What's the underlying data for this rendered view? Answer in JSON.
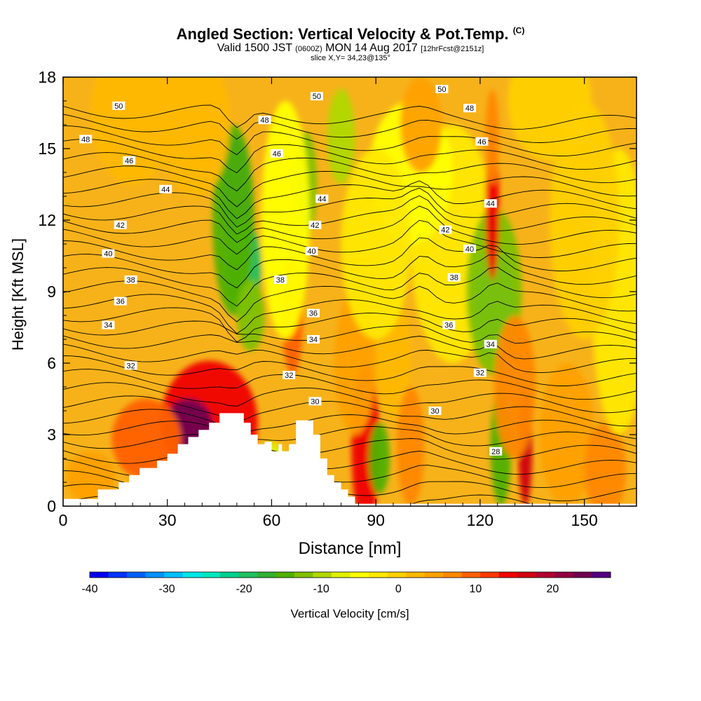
{
  "title": {
    "main": "Angled Section: Vertical Velocity & Pot.Temp.",
    "copyright": "(C)",
    "valid_prefix": "Valid 1500 JST",
    "utc": "(0600Z)",
    "valid_suffix": "MON 14 Aug 2017",
    "forecast": "[12hrFcst@2151z]",
    "slice": "slice X,Y= 34,23@135°"
  },
  "colors": {
    "background_field": "#f7b21a",
    "terrain": "#ffffff",
    "contour": "#000000"
  },
  "chart_data": {
    "type": "heatmap",
    "xlabel": "Distance [nm]",
    "ylabel": "Height [Kft MSL]",
    "xlim": [
      0,
      165
    ],
    "ylim": [
      0,
      18
    ],
    "x_ticks": [
      "0",
      "30",
      "60",
      "90",
      "120",
      "150"
    ],
    "y_ticks": [
      "0",
      "3",
      "6",
      "9",
      "12",
      "15",
      "18"
    ],
    "colorbar": {
      "label": "Vertical Velocity [cm/s]",
      "min": -40,
      "max": 27.5,
      "step": 2.5,
      "tick_labels": [
        "-40",
        "-30",
        "-20",
        "-10",
        "0",
        "10",
        "20"
      ],
      "colors": [
        "#0000f0",
        "#0033ff",
        "#0060ff",
        "#0090ff",
        "#00bfff",
        "#00e8e8",
        "#00e8c0",
        "#00d090",
        "#20c060",
        "#30b030",
        "#50b000",
        "#80c000",
        "#b0d800",
        "#e0f000",
        "#ffff00",
        "#ffe800",
        "#ffd000",
        "#ffb800",
        "#ffa000",
        "#ff8800",
        "#ff6000",
        "#ff3800",
        "#f00000",
        "#d00010",
        "#b00030",
        "#900040",
        "#700050",
        "#500080"
      ]
    },
    "theta_labels": [
      {
        "text": "50",
        "x": 16,
        "y": 16.8
      },
      {
        "text": "48",
        "x": 6.5,
        "y": 15.4
      },
      {
        "text": "46",
        "x": 19,
        "y": 14.5
      },
      {
        "text": "44",
        "x": 29.5,
        "y": 13.3
      },
      {
        "text": "42",
        "x": 16.5,
        "y": 11.8
      },
      {
        "text": "40",
        "x": 13,
        "y": 10.6
      },
      {
        "text": "38",
        "x": 19.5,
        "y": 9.5
      },
      {
        "text": "36",
        "x": 16.5,
        "y": 8.6
      },
      {
        "text": "34",
        "x": 13,
        "y": 7.6
      },
      {
        "text": "32",
        "x": 19.5,
        "y": 5.9
      },
      {
        "text": "48",
        "x": 58,
        "y": 16.2
      },
      {
        "text": "46",
        "x": 61.5,
        "y": 14.8
      },
      {
        "text": "50",
        "x": 73,
        "y": 17.2
      },
      {
        "text": "44",
        "x": 74.5,
        "y": 12.9
      },
      {
        "text": "42",
        "x": 72.5,
        "y": 11.8
      },
      {
        "text": "40",
        "x": 71.5,
        "y": 10.7
      },
      {
        "text": "38",
        "x": 62.5,
        "y": 9.5
      },
      {
        "text": "36",
        "x": 72,
        "y": 8.1
      },
      {
        "text": "34",
        "x": 72,
        "y": 7.0
      },
      {
        "text": "32",
        "x": 65,
        "y": 5.5
      },
      {
        "text": "30",
        "x": 72.5,
        "y": 4.4
      },
      {
        "text": "50",
        "x": 109,
        "y": 17.5
      },
      {
        "text": "48",
        "x": 117,
        "y": 16.7
      },
      {
        "text": "46",
        "x": 120.5,
        "y": 15.3
      },
      {
        "text": "44",
        "x": 123,
        "y": 12.7
      },
      {
        "text": "42",
        "x": 110,
        "y": 11.6
      },
      {
        "text": "40",
        "x": 117,
        "y": 10.8
      },
      {
        "text": "38",
        "x": 112.5,
        "y": 9.6
      },
      {
        "text": "36",
        "x": 111,
        "y": 7.6
      },
      {
        "text": "34",
        "x": 123,
        "y": 6.8
      },
      {
        "text": "32",
        "x": 120,
        "y": 5.6
      },
      {
        "text": "30",
        "x": 107,
        "y": 4.0
      },
      {
        "text": "28",
        "x": 124.5,
        "y": 2.3
      }
    ]
  }
}
